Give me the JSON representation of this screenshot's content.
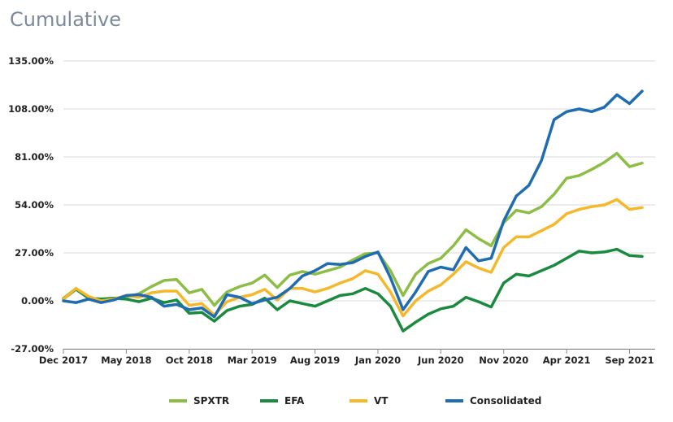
{
  "chart_data": {
    "type": "line",
    "title": "Cumulative",
    "xlabel": "",
    "ylabel": "",
    "ylim": [
      -27,
      135
    ],
    "y_ticks": [
      "135.00%",
      "108.00%",
      "81.00%",
      "54.00%",
      "27.00%",
      "0.00%",
      "-27.00%"
    ],
    "y_tick_values": [
      135,
      108,
      81,
      54,
      27,
      0,
      -27
    ],
    "x_ticks": [
      "Dec 2017",
      "May 2018",
      "Oct 2018",
      "Mar 2019",
      "Aug 2019",
      "Jan 2020",
      "Jun 2020",
      "Nov 2020",
      "Apr 2021",
      "Sep 2021"
    ],
    "x_tick_index": [
      0,
      5,
      10,
      15,
      20,
      25,
      30,
      35,
      40,
      45
    ],
    "x": [
      "2017-12",
      "2018-01",
      "2018-02",
      "2018-03",
      "2018-04",
      "2018-05",
      "2018-06",
      "2018-07",
      "2018-08",
      "2018-09",
      "2018-10",
      "2018-11",
      "2018-12",
      "2019-01",
      "2019-02",
      "2019-03",
      "2019-04",
      "2019-05",
      "2019-06",
      "2019-07",
      "2019-08",
      "2019-09",
      "2019-10",
      "2019-11",
      "2019-12",
      "2020-01",
      "2020-02",
      "2020-03",
      "2020-04",
      "2020-05",
      "2020-06",
      "2020-07",
      "2020-08",
      "2020-09",
      "2020-10",
      "2020-11",
      "2020-12",
      "2021-01",
      "2021-02",
      "2021-03",
      "2021-04",
      "2021-05",
      "2021-06",
      "2021-07",
      "2021-08",
      "2021-09",
      "2021-10"
    ],
    "series": [
      {
        "name": "SPXTR",
        "color": "#8cbd45",
        "values": [
          1.5,
          7,
          1.5,
          1,
          1.5,
          2,
          4,
          8,
          11.5,
          12,
          4.5,
          6.5,
          -2.5,
          5,
          8,
          10,
          14.5,
          7.5,
          14.5,
          16.5,
          15,
          17,
          19,
          23,
          26.5,
          27,
          17,
          3,
          15,
          21,
          24,
          31,
          40,
          35,
          31,
          44,
          51,
          49.5,
          53,
          60,
          69,
          70.5,
          74,
          78,
          83,
          75.5,
          77.5
        ]
      },
      {
        "name": "EFA",
        "color": "#1a8a3f",
        "values": [
          1,
          6.5,
          1.5,
          1,
          1.5,
          1,
          -0.5,
          1.5,
          -1,
          0.5,
          -7,
          -6.5,
          -11.5,
          -5.5,
          -3,
          -2,
          1.5,
          -5,
          0,
          -1.5,
          -3,
          0,
          3,
          4,
          7,
          4,
          -3,
          -17,
          -12,
          -7.5,
          -4.5,
          -3,
          2,
          -0.5,
          -3.5,
          10,
          15,
          14,
          17,
          20,
          24,
          28,
          27,
          27.5,
          29,
          25.5,
          25
        ]
      },
      {
        "name": "VT",
        "color": "#f5b82a",
        "values": [
          1,
          7,
          2.5,
          0,
          1,
          3,
          2,
          4.5,
          5.5,
          5.5,
          -2.5,
          -1.5,
          -8,
          -0.5,
          2,
          3.5,
          6.5,
          0.5,
          7,
          7,
          5,
          7,
          10,
          12.5,
          17,
          15,
          5,
          -8.5,
          0,
          5.5,
          9,
          15,
          22,
          18.5,
          16,
          30,
          36,
          36,
          39.5,
          43,
          49,
          51.5,
          53,
          54,
          57,
          51.5,
          52.5
        ]
      },
      {
        "name": "Consolidated",
        "color": "#1f6cb0",
        "values": [
          0,
          -1,
          1,
          -1,
          0.5,
          3,
          3.5,
          2,
          -3,
          -2,
          -5,
          -4,
          -9,
          3.5,
          2,
          -1.5,
          0.5,
          2,
          7,
          14,
          17,
          21,
          20.5,
          21.5,
          25,
          27.5,
          13,
          -5,
          5,
          16.5,
          19,
          17.5,
          30,
          22.5,
          24,
          45,
          59,
          65,
          79,
          102,
          106.5,
          108,
          106.5,
          109,
          116,
          111,
          118
        ]
      }
    ]
  }
}
